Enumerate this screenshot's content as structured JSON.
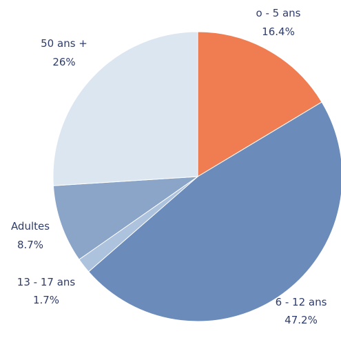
{
  "chart_data": {
    "type": "pie",
    "start": "12 o'clock",
    "direction": "clockwise",
    "slices": [
      {
        "label": "o - 5 ans",
        "value_text": "16.4%",
        "value": 16.4,
        "color": "#f07d52"
      },
      {
        "label": "6 - 12 ans",
        "value_text": "47.2%",
        "value": 47.2,
        "color": "#6b8bba"
      },
      {
        "label": "13 - 17 ans",
        "value_text": "1.7%",
        "value": 1.7,
        "color": "#adc2dc"
      },
      {
        "label": "Adultes",
        "value_text": "8.7%",
        "value": 8.7,
        "color": "#8aa5c8"
      },
      {
        "label": "50 ans +",
        "value_text": "26%",
        "value": 26,
        "color": "#dce6f1"
      }
    ]
  }
}
